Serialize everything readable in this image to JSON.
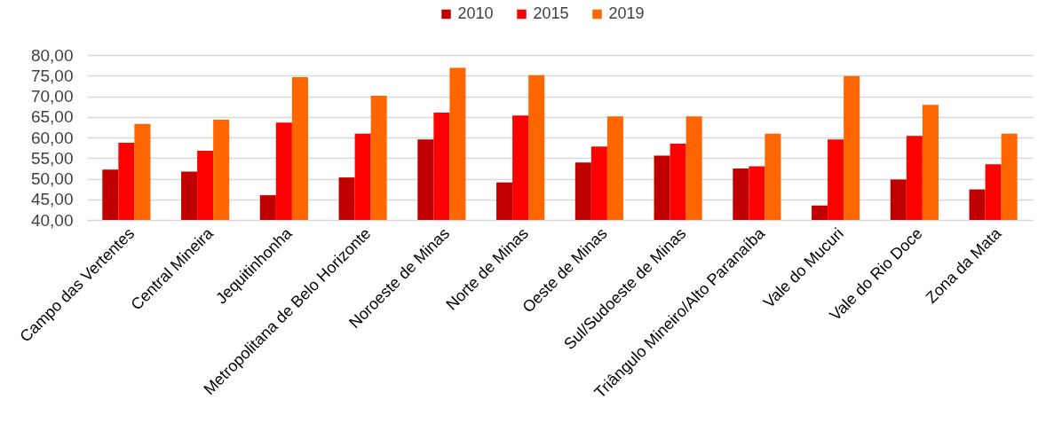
{
  "chart_data": {
    "type": "bar",
    "categories": [
      "Campo das Vertentes",
      "Central Mineira",
      "Jequitinhonha",
      "Metropolitana de Belo Horizonte",
      "Noroeste de Minas",
      "Norte de Minas",
      "Oeste de Minas",
      "Sul/Sudoeste de Minas",
      "Triângulo Mineiro/Alto Paranaíba",
      "Vale do Mucuri",
      "Vale do Rio Doce",
      "Zona da Mata"
    ],
    "series": [
      {
        "name": "2010",
        "color": "#c00000",
        "values": [
          52.2,
          51.7,
          46.0,
          50.3,
          59.5,
          49.1,
          53.9,
          55.6,
          52.5,
          43.5,
          49.8,
          47.4
        ]
      },
      {
        "name": "2015",
        "color": "#ff0000",
        "values": [
          58.7,
          56.8,
          63.6,
          60.9,
          66.0,
          65.3,
          57.8,
          58.5,
          53.0,
          59.5,
          60.4,
          53.5
        ]
      },
      {
        "name": "2019",
        "color": "#ff6600",
        "values": [
          63.3,
          64.3,
          74.6,
          70.1,
          76.9,
          75.1,
          65.1,
          65.1,
          60.9,
          74.9,
          67.9,
          60.9
        ]
      }
    ],
    "ylim": [
      40,
      80
    ],
    "yticks": [
      {
        "value": 40,
        "label": "40,00"
      },
      {
        "value": 45,
        "label": "45,00"
      },
      {
        "value": 50,
        "label": "50,00"
      },
      {
        "value": 55,
        "label": "55,00"
      },
      {
        "value": 60,
        "label": "60,00"
      },
      {
        "value": 65,
        "label": "65,00"
      },
      {
        "value": 70,
        "label": "70,00"
      },
      {
        "value": 75,
        "label": "75,00"
      },
      {
        "value": 80,
        "label": "80,00"
      }
    ],
    "grid": true,
    "legend": "top"
  }
}
